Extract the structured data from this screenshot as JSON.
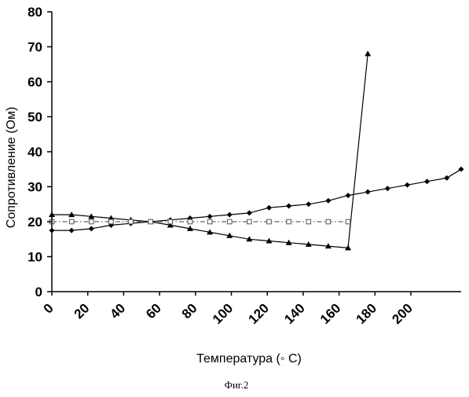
{
  "chart_data": {
    "type": "line",
    "title": "",
    "xlabel": "Температура (◦ С)",
    "ylabel": "Сопротивление (Ом)",
    "caption": "Фиг.2",
    "xlim": [
      0,
      228
    ],
    "ylim": [
      0,
      80
    ],
    "x_ticks": [
      "0",
      "20",
      "40",
      "60",
      "80",
      "100",
      "120",
      "140",
      "160",
      "180",
      "200"
    ],
    "y_ticks": [
      "0",
      "10",
      "20",
      "30",
      "40",
      "50",
      "60",
      "70",
      "80"
    ],
    "grid": false,
    "legend": "none",
    "series": [
      {
        "marker": "diamond",
        "line_style": "solid",
        "color": "#000000",
        "x": [
          0,
          11,
          22,
          33,
          44,
          55,
          66,
          77,
          88,
          99,
          110,
          121,
          132,
          143,
          154,
          165,
          176,
          187,
          198,
          209,
          220,
          228
        ],
        "y": [
          17.5,
          17.5,
          18,
          19,
          19.5,
          20,
          20.5,
          21,
          21.5,
          22,
          22.5,
          24,
          24.5,
          25,
          26,
          27.5,
          28.5,
          29.5,
          30.5,
          31.5,
          32.5,
          35
        ]
      },
      {
        "marker": "triangle",
        "line_style": "solid",
        "color": "#000000",
        "x": [
          0,
          11,
          22,
          33,
          44,
          55,
          66,
          77,
          88,
          99,
          110,
          121,
          132,
          143,
          154,
          165,
          176
        ],
        "y": [
          22,
          22,
          21.5,
          21,
          20.5,
          20,
          19,
          18,
          17,
          16,
          15,
          14.5,
          14,
          13.5,
          13,
          12.5,
          68
        ]
      },
      {
        "marker": "square",
        "line_style": "dash-dot",
        "color": "#666666",
        "x": [
          0,
          11,
          22,
          33,
          44,
          55,
          66,
          77,
          88,
          99,
          110,
          121,
          132,
          143,
          154,
          165
        ],
        "y": [
          20,
          20,
          20,
          20,
          20,
          20,
          20,
          20,
          20,
          20,
          20,
          20,
          20,
          20,
          20,
          20
        ]
      }
    ]
  }
}
